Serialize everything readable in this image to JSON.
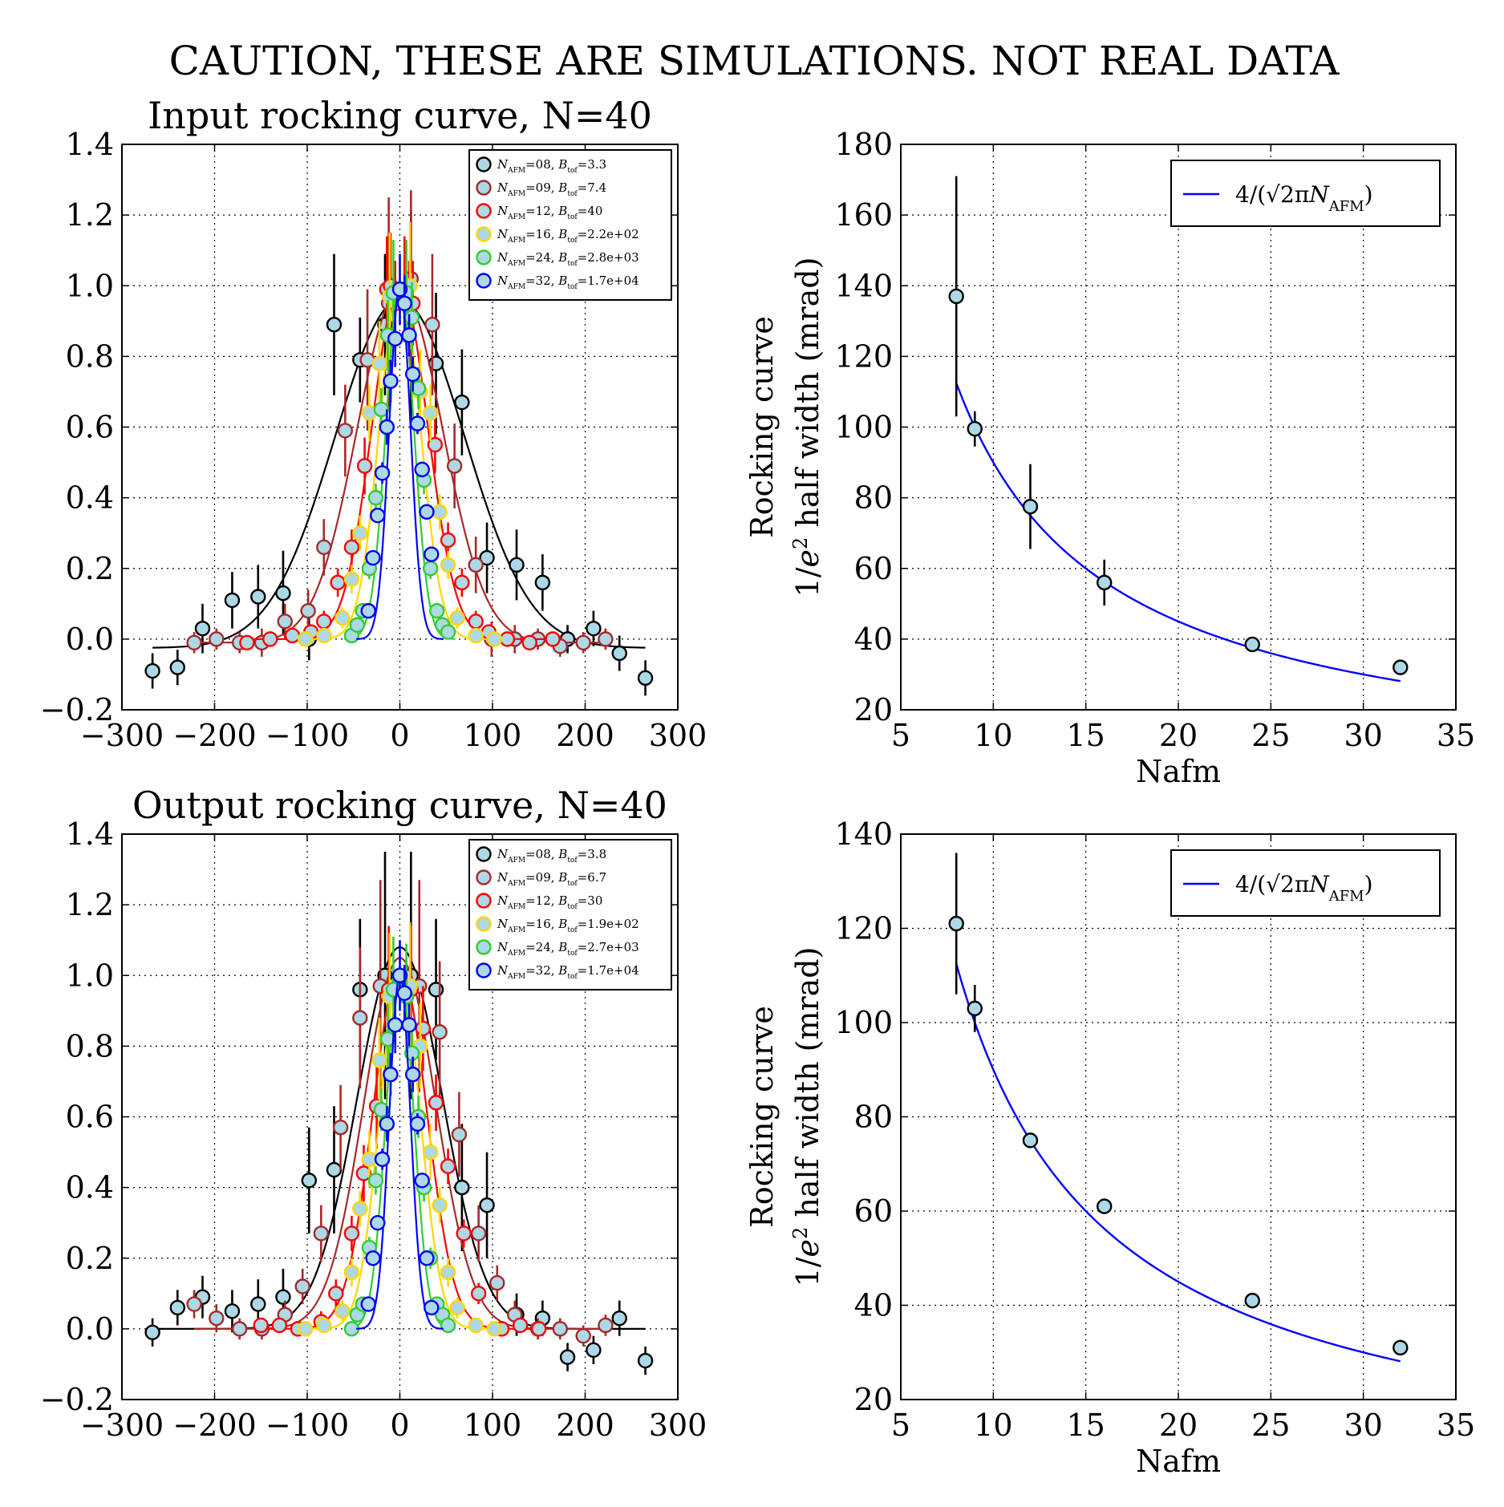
{
  "figure": {
    "suptitle": "CAUTION, THESE ARE SIMULATIONS. NOT REAL DATA"
  },
  "chart_data": [
    {
      "id": "input-rocking",
      "type": "scatter",
      "title": "Input rocking curve, N=40",
      "xlabel": "",
      "ylabel": "",
      "xlim": [
        -300,
        300
      ],
      "ylim": [
        -0.2,
        1.4
      ],
      "xticks": [
        "−300",
        "−200",
        "−100",
        "0",
        "100",
        "200",
        "300"
      ],
      "yticks": [
        "−0.2",
        "0.0",
        "0.2",
        "0.4",
        "0.6",
        "0.8",
        "1.0",
        "1.2",
        "1.4"
      ],
      "grid": true,
      "legend_position": "top-right",
      "series": [
        {
          "name": "N_AFM=08, B_tof=3.3",
          "label_n": "08",
          "label_b": "3.3",
          "color": "#000000",
          "marker_fill": "#add8e6",
          "sigma": 70,
          "amplitude": 0.985,
          "offset": -0.025,
          "x": [
            -267,
            -240,
            -213,
            -181,
            -153,
            -126,
            -98,
            -71,
            -43,
            -16,
            12,
            39,
            67,
            94,
            126,
            154,
            181,
            209,
            237,
            265
          ],
          "y": [
            -0.09,
            -0.08,
            0.03,
            0.11,
            0.12,
            0.13,
            0.0,
            0.89,
            0.79,
            0.89,
            0.91,
            0.78,
            0.67,
            0.23,
            0.21,
            0.16,
            0.0,
            0.03,
            -0.04,
            -0.11
          ],
          "err": [
            0.05,
            0.05,
            0.07,
            0.08,
            0.09,
            0.12,
            0.06,
            0.2,
            0.12,
            0.2,
            0.3,
            0.2,
            0.15,
            0.1,
            0.1,
            0.08,
            0.04,
            0.05,
            0.05,
            0.05
          ]
        },
        {
          "name": "N_AFM=09, B_tof=7.4",
          "label_n": "09",
          "label_b": "7.4",
          "color": "#a52a2a",
          "marker_fill": "#add8e6",
          "sigma": 46,
          "amplitude": 1.0,
          "offset": -0.01,
          "x": [
            -222,
            -198,
            -173,
            -149,
            -124,
            -99,
            -82,
            -59,
            -35,
            -12,
            12,
            35,
            59,
            82,
            99,
            124,
            149,
            173,
            198,
            222
          ],
          "y": [
            -0.01,
            0.0,
            -0.01,
            -0.01,
            0.05,
            0.08,
            0.26,
            0.59,
            0.79,
            0.95,
            1.02,
            0.89,
            0.49,
            0.21,
            0.0,
            0.0,
            0.0,
            -0.02,
            -0.01,
            0.0
          ],
          "err": [
            0.03,
            0.03,
            0.03,
            0.04,
            0.05,
            0.06,
            0.08,
            0.13,
            0.2,
            0.3,
            0.25,
            0.2,
            0.12,
            0.08,
            0.05,
            0.04,
            0.03,
            0.03,
            0.03,
            0.03
          ]
        },
        {
          "name": "N_AFM=12, B_tof=40",
          "label_n": "12",
          "label_b": "40",
          "color": "#ff0000",
          "marker_fill": "#add8e6",
          "sigma": 30,
          "amplitude": 1.0,
          "offset": 0.0,
          "x": [
            -165,
            -140,
            -116,
            -96,
            -82,
            -67,
            -52,
            -38,
            -14,
            -10,
            -5,
            5,
            10,
            14,
            38,
            52,
            67,
            82,
            96,
            116,
            140,
            165
          ],
          "y": [
            -0.01,
            0.0,
            0.01,
            0.02,
            0.05,
            0.16,
            0.26,
            0.49,
            0.99,
            1.0,
            0.95,
            0.99,
            0.95,
            0.95,
            0.55,
            0.28,
            0.16,
            0.05,
            0.02,
            0.0,
            -0.01,
            0.0
          ],
          "err": [
            0.02,
            0.02,
            0.02,
            0.02,
            0.03,
            0.04,
            0.05,
            0.08,
            0.15,
            0.15,
            0.12,
            0.15,
            0.12,
            0.12,
            0.08,
            0.05,
            0.04,
            0.03,
            0.02,
            0.02,
            0.02,
            0.02
          ]
        },
        {
          "name": "N_AFM=16, B_tof=2.2e+02",
          "label_n": "16",
          "label_b": "2.2e+02",
          "color": "#ffd700",
          "marker_fill": "#add8e6",
          "sigma": 22,
          "amplitude": 1.0,
          "offset": 0.0,
          "x": [
            -102,
            -82,
            -62,
            -52,
            -43,
            -33,
            -22,
            -11,
            11,
            22,
            33,
            43,
            52,
            62,
            82,
            102
          ],
          "y": [
            0.0,
            0.01,
            0.06,
            0.17,
            0.3,
            0.64,
            0.78,
            0.97,
            1.0,
            0.7,
            0.64,
            0.36,
            0.21,
            0.06,
            0.01,
            0.0
          ],
          "err": [
            0.02,
            0.02,
            0.03,
            0.04,
            0.05,
            0.08,
            0.12,
            0.18,
            0.18,
            0.12,
            0.08,
            0.05,
            0.04,
            0.03,
            0.02,
            0.02
          ]
        },
        {
          "name": "N_AFM=24, B_tof=2.8e+03",
          "label_n": "24",
          "label_b": "2.8e+03",
          "color": "#32cd32",
          "marker_fill": "#add8e6",
          "sigma": 15,
          "amplitude": 1.0,
          "offset": 0.0,
          "x": [
            -52,
            -46,
            -40,
            -33,
            -26,
            -20,
            -13,
            -7,
            7,
            13,
            20,
            26,
            33,
            40,
            46,
            52
          ],
          "y": [
            0.01,
            0.04,
            0.08,
            0.2,
            0.4,
            0.65,
            0.86,
            0.98,
            0.98,
            0.91,
            0.71,
            0.45,
            0.2,
            0.08,
            0.04,
            0.02
          ],
          "err": [
            0.02,
            0.02,
            0.02,
            0.03,
            0.04,
            0.06,
            0.1,
            0.15,
            0.15,
            0.1,
            0.06,
            0.04,
            0.03,
            0.02,
            0.02,
            0.02
          ]
        },
        {
          "name": "N_AFM=32, B_tof=1.7e+04",
          "label_n": "32",
          "label_b": "1.7e+04",
          "color": "#0000ff",
          "marker_fill": "#add8e6",
          "sigma": 11.4,
          "amplitude": 1.0,
          "offset": 0.0,
          "x": [
            -34,
            -29,
            -24,
            -19,
            -14,
            -10,
            -5,
            0,
            5,
            10,
            14,
            19,
            24,
            29,
            34
          ],
          "y": [
            0.08,
            0.23,
            0.35,
            0.47,
            0.6,
            0.73,
            0.85,
            0.99,
            0.95,
            0.86,
            0.75,
            0.61,
            0.48,
            0.36,
            0.24
          ],
          "err": [
            0.01,
            0.02,
            0.02,
            0.03,
            0.05,
            0.06,
            0.08,
            0.1,
            0.08,
            0.06,
            0.05,
            0.03,
            0.02,
            0.02,
            0.01
          ]
        }
      ]
    },
    {
      "id": "input-halfwidth",
      "type": "scatter",
      "title": "",
      "xlabel": "Nafm",
      "ylabel_line1": "Rocking curve",
      "ylabel_line2_pre": "1/",
      "ylabel_line2_post": " half width (mrad)",
      "xlim": [
        5,
        35
      ],
      "ylim": [
        20,
        180
      ],
      "xticks": [
        "5",
        "10",
        "15",
        "20",
        "25",
        "30",
        "35"
      ],
      "yticks": [
        "20",
        "40",
        "60",
        "80",
        "100",
        "120",
        "140",
        "160",
        "180"
      ],
      "grid": true,
      "legend_position": "top-right",
      "fit": {
        "name": "4/(√2πN_AFM)",
        "color": "#0000ff",
        "constant": 900,
        "xrange": [
          8,
          32
        ]
      },
      "points": {
        "x": [
          8,
          9,
          12,
          16,
          24,
          32
        ],
        "y": [
          137,
          99.5,
          77.5,
          56,
          38.5,
          32
        ],
        "err": [
          34,
          5,
          12,
          6.5,
          1,
          1
        ]
      }
    },
    {
      "id": "output-rocking",
      "type": "scatter",
      "title": "Output rocking curve, N=40",
      "xlabel": "",
      "ylabel": "",
      "xlim": [
        -300,
        300
      ],
      "ylim": [
        -0.2,
        1.4
      ],
      "xticks": [
        "−300",
        "−200",
        "−100",
        "0",
        "100",
        "200",
        "300"
      ],
      "yticks": [
        "−0.2",
        "0.0",
        "0.2",
        "0.4",
        "0.6",
        "0.8",
        "1.0",
        "1.2",
        "1.4"
      ],
      "grid": true,
      "legend_position": "top-right",
      "series": [
        {
          "name": "N_AFM=08, B_tof=3.8",
          "label_n": "08",
          "label_b": "3.8",
          "color": "#000000",
          "marker_fill": "#add8e6",
          "sigma": 46,
          "amplitude": 1.08,
          "offset": 0.0,
          "x": [
            -267,
            -240,
            -213,
            -181,
            -153,
            -126,
            -98,
            -71,
            -43,
            -16,
            12,
            39,
            67,
            94,
            126,
            154,
            181,
            209,
            237,
            265
          ],
          "y": [
            -0.01,
            0.06,
            0.09,
            0.05,
            0.07,
            0.09,
            0.42,
            0.45,
            0.96,
            1.0,
            1.0,
            0.96,
            0.4,
            0.35,
            0.04,
            0.03,
            -0.08,
            -0.06,
            0.03,
            -0.09
          ],
          "err": [
            0.04,
            0.05,
            0.06,
            0.06,
            0.07,
            0.08,
            0.15,
            0.18,
            0.2,
            0.35,
            0.35,
            0.2,
            0.18,
            0.15,
            0.06,
            0.05,
            0.04,
            0.04,
            0.05,
            0.04
          ]
        },
        {
          "name": "N_AFM=09, B_tof=6.7",
          "label_n": "09",
          "label_b": "6.7",
          "color": "#a52a2a",
          "marker_fill": "#add8e6",
          "sigma": 39,
          "amplitude": 1.05,
          "offset": 0.0,
          "x": [
            -222,
            -198,
            -173,
            -149,
            -124,
            -105,
            -85,
            -64,
            -43,
            -21,
            21,
            43,
            64,
            85,
            105,
            124,
            149,
            173,
            198,
            222
          ],
          "y": [
            0.07,
            0.03,
            0.0,
            0.0,
            0.04,
            0.12,
            0.27,
            0.57,
            0.88,
            0.97,
            0.97,
            0.84,
            0.55,
            0.27,
            0.13,
            0.04,
            0.0,
            0.0,
            -0.02,
            0.01
          ],
          "err": [
            0.04,
            0.04,
            0.03,
            0.03,
            0.04,
            0.05,
            0.08,
            0.12,
            0.2,
            0.3,
            0.3,
            0.2,
            0.12,
            0.08,
            0.05,
            0.04,
            0.03,
            0.03,
            0.03,
            0.03
          ]
        },
        {
          "name": "N_AFM=12, B_tof=30",
          "label_n": "12",
          "label_b": "30",
          "color": "#ff0000",
          "marker_fill": "#add8e6",
          "sigma": 29,
          "amplitude": 1.02,
          "offset": 0.0,
          "x": [
            -150,
            -130,
            -110,
            -85,
            -69,
            -52,
            -39,
            -25,
            -12,
            12,
            25,
            39,
            52,
            69,
            85,
            110,
            130,
            150
          ],
          "y": [
            0.01,
            0.01,
            0.0,
            0.02,
            0.1,
            0.27,
            0.44,
            0.63,
            0.96,
            0.96,
            0.85,
            0.64,
            0.46,
            0.27,
            0.1,
            0.0,
            0.01,
            0.0
          ],
          "err": [
            0.02,
            0.02,
            0.02,
            0.03,
            0.04,
            0.05,
            0.08,
            0.12,
            0.18,
            0.18,
            0.12,
            0.08,
            0.05,
            0.04,
            0.03,
            0.02,
            0.02,
            0.02
          ]
        },
        {
          "name": "N_AFM=16, B_tof=1.9e+02",
          "label_n": "16",
          "label_b": "1.9e+02",
          "color": "#ffd700",
          "marker_fill": "#add8e6",
          "sigma": 22,
          "amplitude": 1.0,
          "offset": 0.0,
          "x": [
            -102,
            -82,
            -62,
            -52,
            -43,
            -33,
            -22,
            -11,
            11,
            22,
            33,
            43,
            52,
            62,
            82,
            102
          ],
          "y": [
            0.0,
            0.01,
            0.05,
            0.16,
            0.34,
            0.48,
            0.76,
            0.94,
            0.97,
            0.8,
            0.5,
            0.35,
            0.16,
            0.06,
            0.01,
            0.0
          ],
          "err": [
            0.02,
            0.02,
            0.03,
            0.04,
            0.05,
            0.08,
            0.12,
            0.18,
            0.18,
            0.12,
            0.08,
            0.05,
            0.04,
            0.03,
            0.02,
            0.02
          ]
        },
        {
          "name": "N_AFM=24, B_tof=2.7e+03",
          "label_n": "24",
          "label_b": "2.7e+03",
          "color": "#32cd32",
          "marker_fill": "#add8e6",
          "sigma": 15,
          "amplitude": 1.0,
          "offset": 0.0,
          "x": [
            -52,
            -46,
            -40,
            -33,
            -26,
            -20,
            -13,
            -7,
            7,
            13,
            20,
            26,
            33,
            40,
            46,
            52
          ],
          "y": [
            0.0,
            0.04,
            0.07,
            0.23,
            0.42,
            0.62,
            0.82,
            0.96,
            0.94,
            0.78,
            0.6,
            0.4,
            0.2,
            0.07,
            0.04,
            0.01
          ],
          "err": [
            0.02,
            0.02,
            0.02,
            0.03,
            0.04,
            0.06,
            0.1,
            0.15,
            0.15,
            0.1,
            0.06,
            0.04,
            0.03,
            0.02,
            0.02,
            0.02
          ]
        },
        {
          "name": "N_AFM=32, B_tof=1.7e+04",
          "label_n": "32",
          "label_b": "1.7e+04",
          "color": "#0000ff",
          "marker_fill": "#add8e6",
          "sigma": 11.4,
          "amplitude": 1.0,
          "offset": 0.0,
          "x": [
            -34,
            -29,
            -24,
            -19,
            -14,
            -10,
            -5,
            0,
            5,
            10,
            14,
            19,
            24,
            29,
            34
          ],
          "y": [
            0.07,
            0.2,
            0.3,
            0.48,
            0.58,
            0.72,
            0.86,
            1.0,
            0.95,
            0.86,
            0.72,
            0.58,
            0.42,
            0.2,
            0.06
          ],
          "err": [
            0.01,
            0.02,
            0.02,
            0.03,
            0.05,
            0.06,
            0.08,
            0.1,
            0.08,
            0.06,
            0.05,
            0.03,
            0.02,
            0.02,
            0.01
          ]
        }
      ]
    },
    {
      "id": "output-halfwidth",
      "type": "scatter",
      "title": "",
      "xlabel": "Nafm",
      "ylabel_line1": "Rocking curve",
      "ylabel_line2_pre": "1/",
      "ylabel_line2_post": " half width (mrad)",
      "xlim": [
        5,
        35
      ],
      "ylim": [
        20,
        140
      ],
      "xticks": [
        "5",
        "10",
        "15",
        "20",
        "25",
        "30",
        "35"
      ],
      "yticks": [
        "20",
        "40",
        "60",
        "80",
        "100",
        "120",
        "140"
      ],
      "grid": true,
      "legend_position": "top-right",
      "fit": {
        "name": "4/(√2πN_AFM)",
        "color": "#0000ff",
        "constant": 900,
        "xrange": [
          8,
          32
        ]
      },
      "points": {
        "x": [
          8,
          9,
          12,
          16,
          24,
          32
        ],
        "y": [
          121,
          103,
          75,
          61,
          41,
          31
        ],
        "err": [
          15,
          5,
          0.5,
          0.5,
          0.5,
          0.5
        ]
      }
    }
  ]
}
